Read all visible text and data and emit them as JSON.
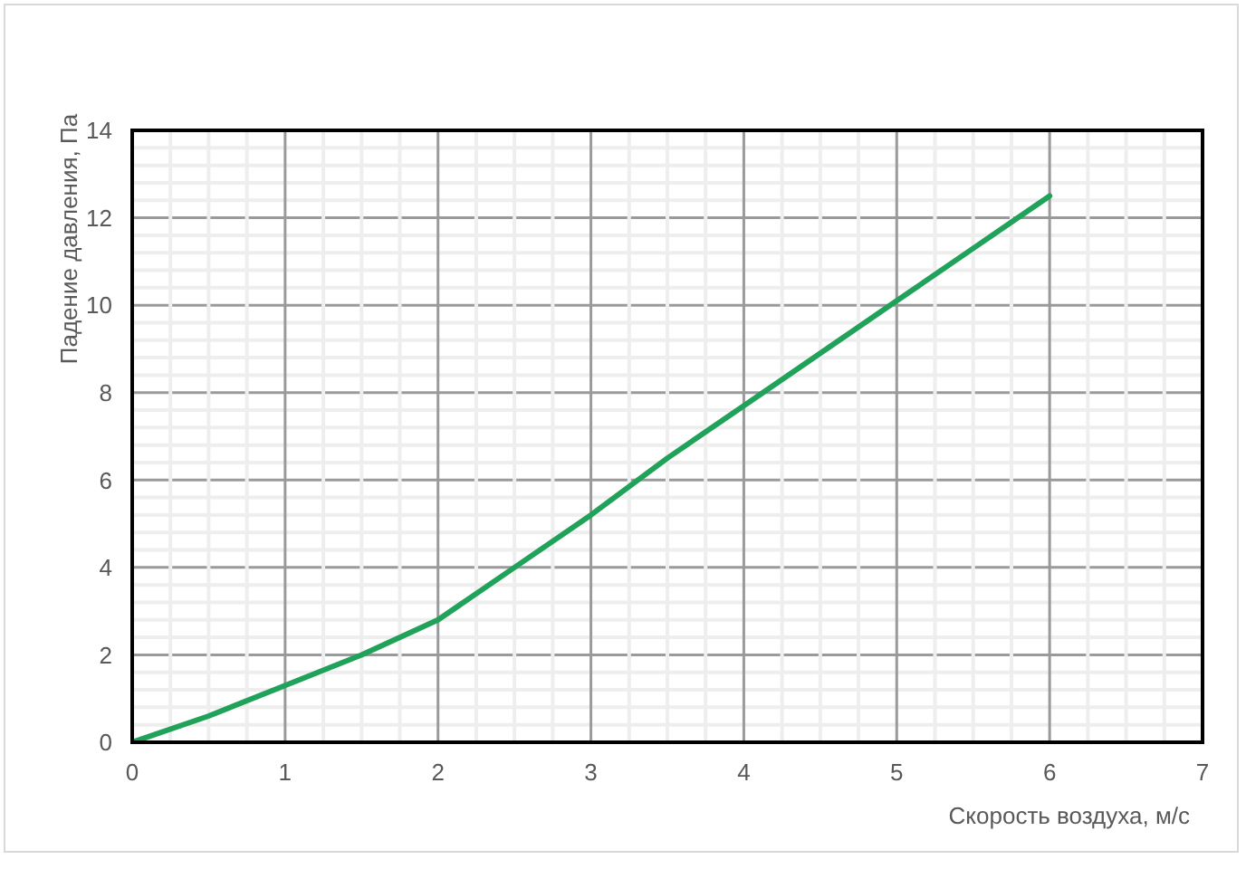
{
  "chart_data": {
    "type": "line",
    "xlabel": "Скорость воздуха, м/с",
    "ylabel": "Падение давления, Па",
    "x": [
      0,
      0.5,
      1,
      1.5,
      2,
      2.5,
      3,
      3.5,
      4,
      4.5,
      5,
      5.5,
      6
    ],
    "series": [
      {
        "color": "#21a25a",
        "values": [
          0,
          0.6,
          1.3,
          2.0,
          2.8,
          4.0,
          5.2,
          6.5,
          7.7,
          8.9,
          10.1,
          11.3,
          12.5
        ]
      }
    ],
    "xlim": [
      0,
      7
    ],
    "ylim": [
      0,
      14
    ],
    "xticks": [
      0,
      {
        "value": 0.25,
        "label": null
      },
      {
        "value": 0.5,
        "label": null
      },
      {
        "value": 0.75,
        "label": null
      },
      1,
      {
        "value": 1.25,
        "label": null
      },
      {
        "value": 1.5,
        "label": null
      },
      {
        "value": 1.75,
        "label": null
      },
      2,
      {
        "value": 2.25,
        "label": null
      },
      {
        "value": 2.5,
        "label": null
      },
      {
        "value": 2.75,
        "label": null
      },
      3,
      {
        "value": 3.25,
        "label": null
      },
      {
        "value": 3.5,
        "label": null
      },
      {
        "value": 3.75,
        "label": null
      },
      4,
      {
        "value": 4.25,
        "label": null
      },
      {
        "value": 4.5,
        "label": null
      },
      {
        "value": 4.75,
        "label": null
      },
      5,
      {
        "value": 5.25,
        "label": null
      },
      {
        "value": 5.5,
        "label": null
      },
      {
        "value": 5.75,
        "label": null
      },
      6,
      {
        "value": 6.25,
        "label": null
      },
      {
        "value": 6.5,
        "label": null
      },
      {
        "value": 6.75,
        "label": null
      },
      7
    ],
    "yticks": [
      0,
      {
        "value": 0.4,
        "label": null
      },
      {
        "value": 0.8,
        "label": null
      },
      {
        "value": 1.2,
        "label": null
      },
      {
        "value": 1.6,
        "label": null
      },
      2,
      {
        "value": 2.4,
        "label": null
      },
      {
        "value": 2.8,
        "label": null
      },
      {
        "value": 3.2,
        "label": null
      },
      {
        "value": 3.6,
        "label": null
      },
      4,
      {
        "value": 4.4,
        "label": null
      },
      {
        "value": 4.8,
        "label": null
      },
      {
        "value": 5.2,
        "label": null
      },
      {
        "value": 5.6,
        "label": null
      },
      6,
      {
        "value": 6.4,
        "label": null
      },
      {
        "value": 6.8,
        "label": null
      },
      {
        "value": 7.2,
        "label": null
      },
      {
        "value": 7.6,
        "label": null
      },
      8,
      {
        "value": 8.4,
        "label": null
      },
      {
        "value": 8.8,
        "label": null
      },
      {
        "value": 9.2,
        "label": null
      },
      {
        "value": 9.6,
        "label": null
      },
      10,
      {
        "value": 10.4,
        "label": null
      },
      {
        "value": 10.8,
        "label": null
      },
      {
        "value": 11.2,
        "label": null
      },
      {
        "value": 11.6,
        "label": null
      },
      12,
      {
        "value": 12.4,
        "label": null
      },
      {
        "value": 12.8,
        "label": null
      },
      {
        "value": 13.2,
        "label": null
      },
      {
        "value": 13.6,
        "label": null
      },
      14
    ],
    "grid": true,
    "marker": "none",
    "line_style": "solid"
  }
}
